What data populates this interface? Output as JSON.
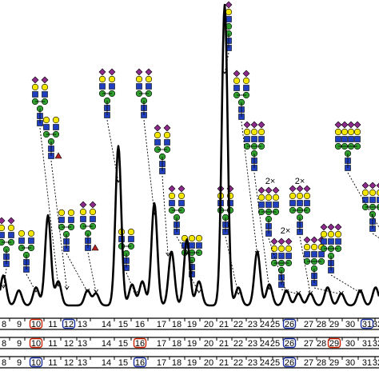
{
  "chart_data": {
    "type": "line",
    "title": "",
    "xlabel": "",
    "ylabel": "",
    "colors": {
      "trace": "#000000",
      "red_box": "#cc2200",
      "blue_box": "#1a2fa0",
      "glcnac": "#1f3fbf",
      "mannose": "#2f9e2f",
      "galactose": "#f2e600",
      "sialic_acid": "#8b2a8b",
      "fucose": "#b22222"
    },
    "peaks": [
      {
        "x": 7.4,
        "y": 0.1
      },
      {
        "x": 8.3,
        "y": 0.05
      },
      {
        "x": 9.3,
        "y": 0.06
      },
      {
        "x": 10.0,
        "y": 0.3
      },
      {
        "x": 10.6,
        "y": 0.08
      },
      {
        "x": 12.3,
        "y": 0.05
      },
      {
        "x": 12.8,
        "y": 0.04
      },
      {
        "x": 14.1,
        "y": 0.53
      },
      {
        "x": 14.9,
        "y": 0.07
      },
      {
        "x": 15.5,
        "y": 0.08
      },
      {
        "x": 16.2,
        "y": 0.34
      },
      {
        "x": 17.2,
        "y": 0.18
      },
      {
        "x": 18.1,
        "y": 0.22
      },
      {
        "x": 18.8,
        "y": 0.08
      },
      {
        "x": 20.3,
        "y": 1.0
      },
      {
        "x": 21.1,
        "y": 0.06
      },
      {
        "x": 22.2,
        "y": 0.18
      },
      {
        "x": 22.9,
        "y": 0.07
      },
      {
        "x": 23.9,
        "y": 0.05
      },
      {
        "x": 24.6,
        "y": 0.04
      },
      {
        "x": 25.3,
        "y": 0.04
      },
      {
        "x": 26.3,
        "y": 0.06
      },
      {
        "x": 27.1,
        "y": 0.04
      },
      {
        "x": 28.2,
        "y": 0.05
      },
      {
        "x": 29.1,
        "y": 0.06
      },
      {
        "x": 30.2,
        "y": 0.17
      },
      {
        "x": 31.4,
        "y": 0.1
      },
      {
        "x": 31.9,
        "y": 0.12
      }
    ],
    "annotations": [
      {
        "text": "2×"
      },
      {
        "text": "2×"
      },
      {
        "text": "2×"
      }
    ],
    "peak_rows": [
      {
        "labels": [
          {
            "text": "8",
            "box": ""
          },
          {
            "text": "9",
            "box": ""
          },
          {
            "text": "10",
            "box": "red"
          },
          {
            "text": "11",
            "box": ""
          },
          {
            "text": "12",
            "box": "blue"
          },
          {
            "text": "13",
            "box": ""
          },
          {
            "text": "14",
            "box": ""
          },
          {
            "text": "15",
            "box": ""
          },
          {
            "text": "16",
            "box": ""
          },
          {
            "text": "17",
            "box": ""
          },
          {
            "text": "18",
            "box": ""
          },
          {
            "text": "19",
            "box": ""
          },
          {
            "text": "20",
            "box": ""
          },
          {
            "text": "21",
            "box": ""
          },
          {
            "text": "22",
            "box": ""
          },
          {
            "text": "23",
            "box": ""
          },
          {
            "text": "24",
            "box": ""
          },
          {
            "text": "25",
            "box": ""
          },
          {
            "text": "26",
            "box": "blue"
          },
          {
            "text": "27",
            "box": ""
          },
          {
            "text": "28",
            "box": ""
          },
          {
            "text": "29",
            "box": ""
          },
          {
            "text": "30",
            "box": ""
          },
          {
            "text": "31",
            "box": "blue"
          },
          {
            "text": "32",
            "box": ""
          }
        ]
      },
      {
        "labels": [
          {
            "text": "8",
            "box": ""
          },
          {
            "text": "9",
            "box": ""
          },
          {
            "text": "10",
            "box": "red"
          },
          {
            "text": "11",
            "box": ""
          },
          {
            "text": "12",
            "box": ""
          },
          {
            "text": "13",
            "box": ""
          },
          {
            "text": "14",
            "box": ""
          },
          {
            "text": "15",
            "box": ""
          },
          {
            "text": "16",
            "box": "red"
          },
          {
            "text": "17",
            "box": ""
          },
          {
            "text": "18",
            "box": ""
          },
          {
            "text": "19",
            "box": ""
          },
          {
            "text": "20",
            "box": ""
          },
          {
            "text": "21",
            "box": ""
          },
          {
            "text": "22",
            "box": ""
          },
          {
            "text": "23",
            "box": ""
          },
          {
            "text": "24",
            "box": ""
          },
          {
            "text": "25",
            "box": ""
          },
          {
            "text": "26",
            "box": "blue"
          },
          {
            "text": "27",
            "box": ""
          },
          {
            "text": "28",
            "box": ""
          },
          {
            "text": "29",
            "box": "red"
          },
          {
            "text": "30",
            "box": ""
          },
          {
            "text": "31",
            "box": ""
          },
          {
            "text": "32",
            "box": ""
          }
        ]
      },
      {
        "labels": [
          {
            "text": "8",
            "box": ""
          },
          {
            "text": "9",
            "box": ""
          },
          {
            "text": "10",
            "box": "blue"
          },
          {
            "text": "11",
            "box": ""
          },
          {
            "text": "12",
            "box": ""
          },
          {
            "text": "13",
            "box": ""
          },
          {
            "text": "14",
            "box": ""
          },
          {
            "text": "15",
            "box": ""
          },
          {
            "text": "16",
            "box": "blue"
          },
          {
            "text": "17",
            "box": ""
          },
          {
            "text": "18",
            "box": ""
          },
          {
            "text": "19",
            "box": ""
          },
          {
            "text": "20",
            "box": ""
          },
          {
            "text": "21",
            "box": ""
          },
          {
            "text": "22",
            "box": ""
          },
          {
            "text": "23",
            "box": ""
          },
          {
            "text": "24",
            "box": ""
          },
          {
            "text": "25",
            "box": ""
          },
          {
            "text": "26",
            "box": "blue"
          },
          {
            "text": "27",
            "box": ""
          },
          {
            "text": "28",
            "box": ""
          },
          {
            "text": "29",
            "box": ""
          },
          {
            "text": "30",
            "box": ""
          },
          {
            "text": "31",
            "box": ""
          },
          {
            "text": "32",
            "box": ""
          }
        ]
      }
    ]
  }
}
